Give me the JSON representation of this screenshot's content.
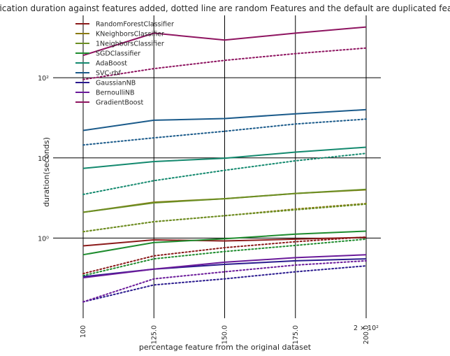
{
  "chart_data": {
    "type": "line",
    "title": "classification duration against features added, dotted line are random Features and the default are duplicated features",
    "xlabel": "percentage feature from the original dataset",
    "ylabel": "duration(seconds)",
    "x": [
      100,
      125,
      150,
      175,
      200
    ],
    "x_tick_labels": [
      "100",
      "125.0",
      "150.0",
      "175.0",
      "200.0"
    ],
    "x_offset_label": "2 × 10²",
    "y_scale": "log",
    "ylim": [
      0.1,
      600
    ],
    "y_ticks": [
      {
        "value": 1,
        "label": "10⁰"
      },
      {
        "value": 10,
        "label": "10¹"
      },
      {
        "value": 100,
        "label": "10²"
      }
    ],
    "grid": "major ticks only",
    "legend_position": "top-left",
    "series": [
      {
        "name": "RandomForestClassifier",
        "color": "#8b1a1a",
        "duplicated": [
          0.8,
          0.95,
          0.92,
          0.97,
          1.02
        ],
        "random": [
          0.36,
          0.6,
          0.76,
          0.9,
          1.03
        ]
      },
      {
        "name": "KNeighborsClassifier",
        "color": "#8a7a10",
        "duplicated": [
          2.1,
          2.8,
          3.1,
          3.6,
          4.0
        ],
        "random": [
          1.2,
          1.6,
          1.9,
          2.3,
          2.7
        ]
      },
      {
        "name": "1NeighborsClassifier",
        "color": "#6b8e23",
        "duplicated": [
          2.1,
          2.75,
          3.1,
          3.6,
          4.05
        ],
        "random": [
          1.2,
          1.6,
          1.9,
          2.25,
          2.65
        ]
      },
      {
        "name": "SGDClassifier",
        "color": "#1e8c2e",
        "duplicated": [
          0.62,
          0.88,
          0.98,
          1.12,
          1.22
        ],
        "random": [
          0.34,
          0.55,
          0.68,
          0.81,
          0.97
        ]
      },
      {
        "name": "AdaBoost",
        "color": "#13896e",
        "duplicated": [
          7.4,
          9.0,
          9.9,
          11.8,
          13.6
        ],
        "random": [
          3.5,
          5.2,
          7.0,
          9.2,
          11.4
        ]
      },
      {
        "name": "SVC-rbf",
        "color": "#1a5a8a",
        "duplicated": [
          22,
          29.5,
          31,
          35.5,
          40
        ],
        "random": [
          14.5,
          17.8,
          21.5,
          26.5,
          30.5
        ]
      },
      {
        "name": "GaussianNB",
        "color": "#2a1a8e",
        "duplicated": [
          0.33,
          0.41,
          0.47,
          0.52,
          0.55
        ],
        "random": [
          0.16,
          0.26,
          0.31,
          0.38,
          0.45
        ]
      },
      {
        "name": "BernoulliNB",
        "color": "#6a1a9a",
        "duplicated": [
          0.32,
          0.41,
          0.5,
          0.57,
          0.62
        ],
        "random": [
          0.16,
          0.31,
          0.38,
          0.46,
          0.52
        ]
      },
      {
        "name": "GradientBoost",
        "color": "#8e1460",
        "duplicated": [
          190,
          360,
          295,
          360,
          430
        ],
        "random": [
          95,
          130,
          165,
          200,
          235
        ]
      }
    ]
  }
}
